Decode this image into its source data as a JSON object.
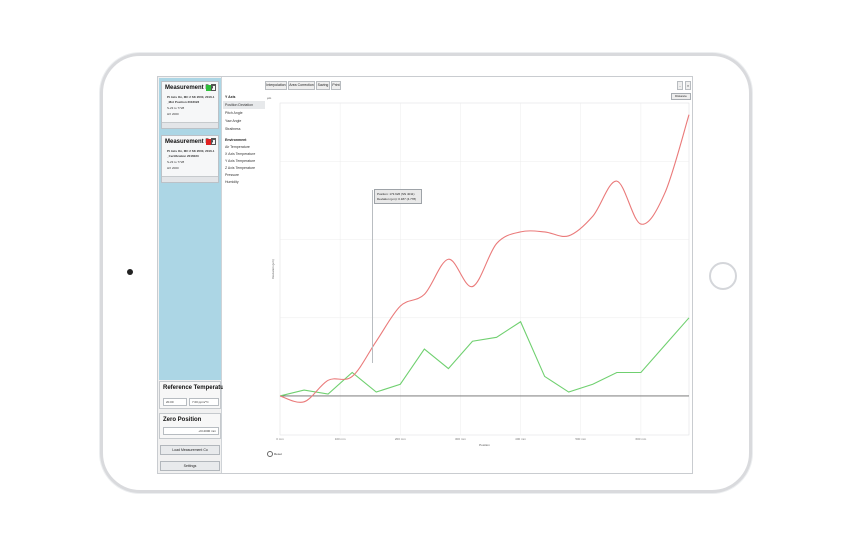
{
  "sidebar": {
    "cards": [
      {
        "title": "Measurement Po",
        "status_color": "#2ebf3b",
        "lines": [
          "Pt Axis On, MC 2 SK 2000, 2016-1",
          "_Mnt Position 2016023",
          "S-23 to 7728",
          "HX 2000"
        ]
      },
      {
        "title": "Measurement Po",
        "status_color": "#e02020",
        "lines": [
          "Pt Axis On, MC 2 SK 2000, 2016-1",
          "_Certification 2016023",
          "S-23 to 7728",
          "HX 2000"
        ]
      }
    ],
    "reference": {
      "title": "Reference Temperature",
      "value_c": "20.00",
      "value_f": "7.00 ppm/°C"
    },
    "zero": {
      "title": "Zero Position",
      "value": "-23.2000 mm"
    },
    "load_button": "Load Measurement Co",
    "settings_button": "Settings"
  },
  "params": {
    "axis_head": "Y Axis",
    "axis_items": [
      "Position Deviation",
      "Pitch Angle",
      "Yaw Angle",
      "Straitness"
    ],
    "env_head": "Environment",
    "env_items": [
      "Air Temperature",
      "X Axis Temperature",
      "Y Axis Temperature",
      "Z Axis Temperature",
      "Pressure",
      "Humidity"
    ]
  },
  "tabs": [
    "Interpolation",
    "Area Correction",
    "Saving",
    "Print"
  ],
  "chart_controls": {
    "distance_button": "Distance",
    "unit_label": "μm",
    "reset_label": "Reset",
    "tooltip_line1": "Position: 173.926 (SN 4011)",
    "tooltip_line2": "Deviation (μm): 0.187 (4.778)",
    "minimize_icon": "minimize-icon",
    "close_icon": "close-icon"
  },
  "chart_data": {
    "type": "line",
    "xlabel": "Position",
    "ylabel": "Deviation (μm)",
    "x_ticks": [
      "0 mm",
      "100 mm",
      "200 mm",
      "300 mm",
      "400 mm",
      "500 mm",
      "600 mm"
    ],
    "xlim": [
      0,
      680
    ],
    "ylim": [
      -1.0,
      7.5
    ],
    "series": [
      {
        "name": "Position 1",
        "color": "#70d070",
        "x": [
          0,
          40,
          80,
          120,
          160,
          200,
          240,
          280,
          320,
          360,
          400,
          440,
          480,
          520,
          560,
          600,
          640,
          680
        ],
        "y": [
          0.0,
          0.15,
          0.05,
          0.6,
          0.1,
          0.3,
          1.2,
          0.7,
          1.4,
          1.5,
          1.9,
          0.5,
          0.1,
          0.3,
          0.6,
          0.6,
          1.3,
          2.0
        ]
      },
      {
        "name": "Position 1",
        "color": "#ea7a7a",
        "x": [
          0,
          40,
          80,
          120,
          160,
          200,
          240,
          280,
          320,
          360,
          400,
          440,
          480,
          520,
          560,
          600,
          640,
          680
        ],
        "y": [
          0.0,
          -0.15,
          0.4,
          0.5,
          1.4,
          2.3,
          2.6,
          3.5,
          2.8,
          3.9,
          4.2,
          4.2,
          4.1,
          4.6,
          5.5,
          4.4,
          5.2,
          7.2
        ]
      }
    ]
  }
}
